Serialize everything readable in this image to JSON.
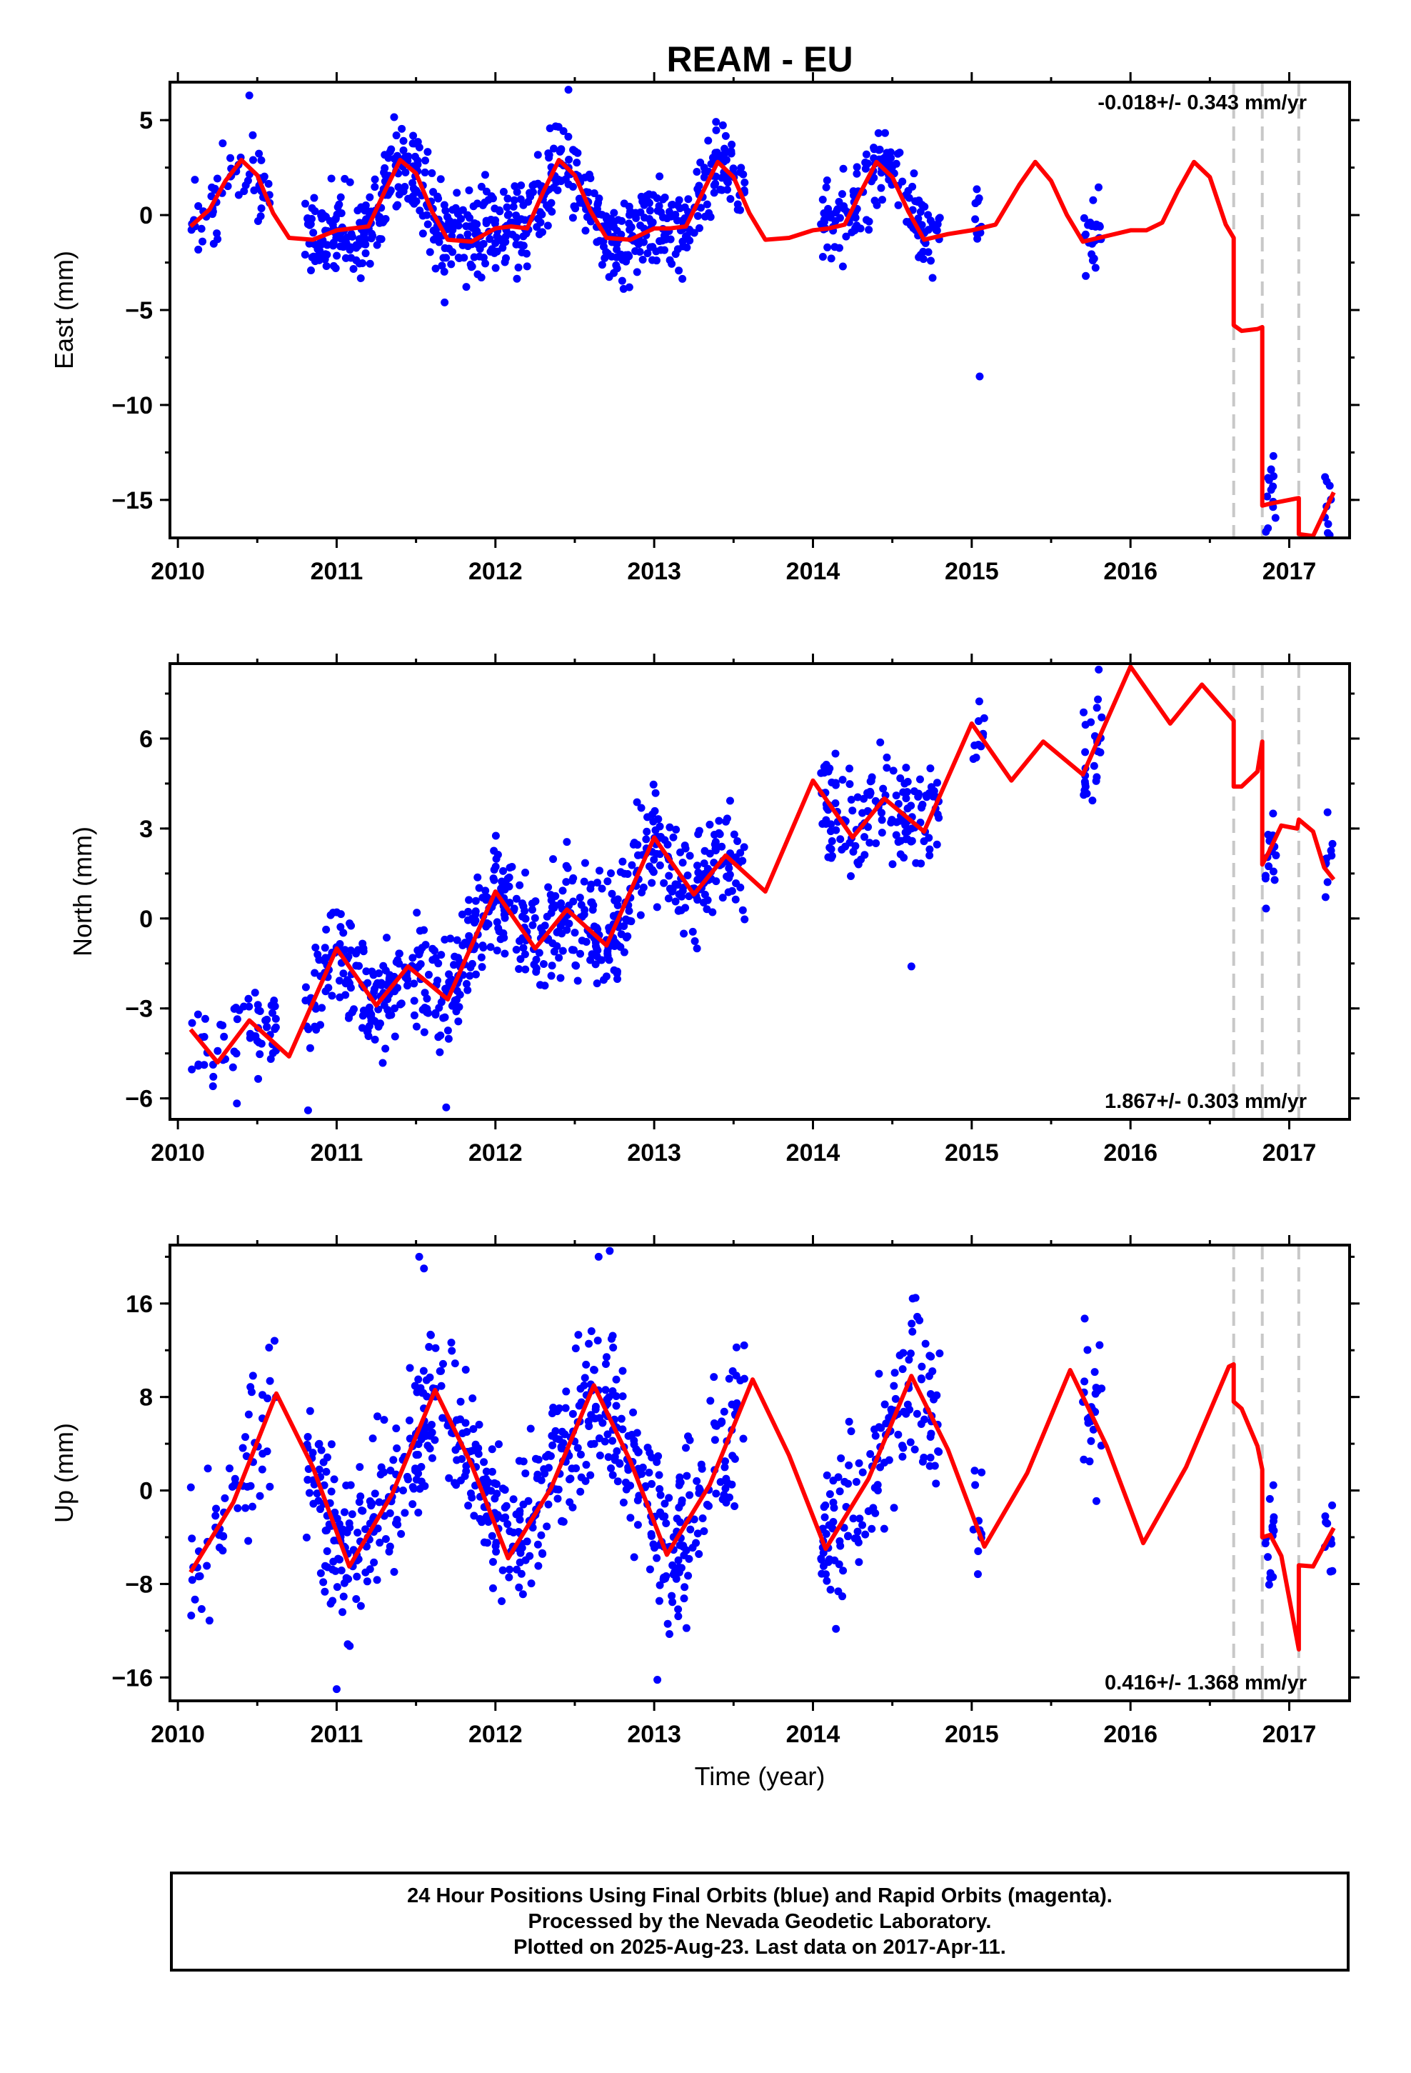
{
  "title": "REAM - EU",
  "colors": {
    "data": "#0000ff",
    "model": "#ff0000",
    "event_lines": "#c8c8c8",
    "frame": "#000000"
  },
  "chart_data": [
    {
      "type": "scatter",
      "component": "east",
      "ylabel": "East (mm)",
      "xlabel": "",
      "xlim": [
        2009.95,
        2017.38
      ],
      "ylim": [
        -17,
        7
      ],
      "xticks": [
        2010,
        2011,
        2012,
        2013,
        2014,
        2015,
        2016,
        2017
      ],
      "yticks": [
        5,
        0,
        -5,
        -10,
        -15
      ],
      "ytick_labels": [
        "5",
        "0",
        "−5",
        "−10",
        "−15"
      ],
      "rate_text": "-0.018+/- 0.343 mm/yr",
      "rate_position": "top-right",
      "event_lines_x": [
        2016.65,
        2016.83,
        2017.06
      ],
      "model": {
        "x": [
          2010.08,
          2010.2,
          2010.3,
          2010.4,
          2010.5,
          2010.6,
          2010.7,
          2010.85,
          2011.0,
          2011.1,
          2011.2,
          2011.3,
          2011.4,
          2011.5,
          2011.6,
          2011.7,
          2011.85,
          2012.0,
          2012.1,
          2012.2,
          2012.3,
          2012.4,
          2012.5,
          2012.6,
          2012.7,
          2012.85,
          2013.0,
          2013.1,
          2013.2,
          2013.3,
          2013.4,
          2013.5,
          2013.6,
          2013.7,
          2013.85,
          2014.0,
          2014.1,
          2014.2,
          2014.3,
          2014.4,
          2014.5,
          2014.6,
          2014.7,
          2014.85,
          2015.0,
          2015.15,
          2015.3,
          2015.4,
          2015.5,
          2015.6,
          2015.7,
          2015.8,
          2016.0,
          2016.1,
          2016.2,
          2016.3,
          2016.4,
          2016.5,
          2016.6,
          2016.65,
          2016.65,
          2016.7,
          2016.8,
          2016.83,
          2016.83,
          2016.88,
          2017.06,
          2017.06,
          2017.15,
          2017.28
        ],
        "y": [
          -0.6,
          0.3,
          1.8,
          2.9,
          2.1,
          0.1,
          -1.2,
          -1.3,
          -0.8,
          -0.7,
          -0.6,
          1.2,
          2.9,
          2.2,
          0.2,
          -1.3,
          -1.4,
          -0.7,
          -0.6,
          -0.7,
          1.2,
          2.9,
          2.1,
          0.2,
          -1.2,
          -1.3,
          -0.7,
          -0.7,
          -0.6,
          1.1,
          2.8,
          2.0,
          0.1,
          -1.3,
          -1.2,
          -0.8,
          -0.7,
          -0.5,
          1.2,
          2.8,
          2.0,
          0.2,
          -1.3,
          -1.0,
          -0.8,
          -0.5,
          1.6,
          2.8,
          1.8,
          0.0,
          -1.4,
          -1.2,
          -0.8,
          -0.8,
          -0.4,
          1.3,
          2.8,
          2.0,
          -0.5,
          -1.2,
          -5.8,
          -6.1,
          -6.0,
          -5.9,
          -15.3,
          -15.2,
          -14.9,
          -16.8,
          -16.9,
          -14.6
        ]
      },
      "points": {
        "segments": [
          [
            2010.08,
            2010.58
          ],
          [
            2010.8,
            2011.35
          ],
          [
            2011.35,
            2011.92
          ],
          [
            2011.92,
            2012.62
          ],
          [
            2012.62,
            2013.15
          ],
          [
            2013.15,
            2013.57
          ],
          [
            2014.05,
            2014.8
          ],
          [
            2015.01,
            2015.08
          ],
          [
            2015.7,
            2015.82
          ],
          [
            2016.85,
            2016.92
          ],
          [
            2017.22,
            2017.28
          ]
        ],
        "count_per_segment": [
          60,
          150,
          150,
          170,
          130,
          90,
          150,
          10,
          25,
          15,
          10
        ],
        "amplitude": 1.6,
        "outliers": [
          [
            2015.05,
            -8.5
          ],
          [
            2012.46,
            6.6
          ],
          [
            2010.45,
            6.3
          ],
          [
            2011.68,
            -4.6
          ]
        ]
      }
    },
    {
      "type": "scatter",
      "component": "north",
      "ylabel": "North (mm)",
      "xlabel": "",
      "xlim": [
        2009.95,
        2017.38
      ],
      "ylim": [
        -6.7,
        8.5
      ],
      "xticks": [
        2010,
        2011,
        2012,
        2013,
        2014,
        2015,
        2016,
        2017
      ],
      "yticks": [
        6,
        3,
        0,
        -3,
        -6
      ],
      "ytick_labels": [
        "6",
        "3",
        "0",
        "−3",
        "−6"
      ],
      "rate_text": "1.867+/- 0.303 mm/yr",
      "rate_position": "bottom-right",
      "event_lines_x": [
        2016.65,
        2016.83,
        2017.06
      ],
      "model": {
        "x": [
          2010.08,
          2010.25,
          2010.45,
          2010.7,
          2011.0,
          2011.25,
          2011.45,
          2011.7,
          2012.0,
          2012.25,
          2012.45,
          2012.7,
          2013.0,
          2013.25,
          2013.45,
          2013.7,
          2014.0,
          2014.25,
          2014.45,
          2014.7,
          2015.0,
          2015.25,
          2015.45,
          2015.7,
          2016.0,
          2016.25,
          2016.45,
          2016.65,
          2016.65,
          2016.7,
          2016.8,
          2016.83,
          2016.83,
          2016.87,
          2016.95,
          2017.05,
          2017.06,
          2017.15,
          2017.22,
          2017.28
        ],
        "y": [
          -3.7,
          -4.8,
          -3.4,
          -4.6,
          -1.0,
          -2.9,
          -1.6,
          -2.7,
          0.9,
          -1.0,
          0.3,
          -0.9,
          2.7,
          0.8,
          2.1,
          0.9,
          4.6,
          2.7,
          4.0,
          2.9,
          6.5,
          4.6,
          5.9,
          4.8,
          8.4,
          6.5,
          7.8,
          6.6,
          4.4,
          4.4,
          4.9,
          5.9,
          1.8,
          2.2,
          3.1,
          3.0,
          3.3,
          2.9,
          1.7,
          1.3
        ]
      },
      "points": {
        "segments": [
          [
            2010.08,
            2010.62
          ],
          [
            2010.8,
            2011.45
          ],
          [
            2011.45,
            2011.92
          ],
          [
            2011.92,
            2012.62
          ],
          [
            2012.62,
            2013.15
          ],
          [
            2013.15,
            2013.57
          ],
          [
            2014.05,
            2014.8
          ],
          [
            2015.01,
            2015.08
          ],
          [
            2015.7,
            2015.82
          ],
          [
            2016.85,
            2016.92
          ],
          [
            2017.22,
            2017.28
          ]
        ],
        "count_per_segment": [
          60,
          150,
          110,
          170,
          130,
          90,
          150,
          10,
          25,
          15,
          10
        ],
        "amplitude": 1.3,
        "outliers": [
          [
            2014.62,
            -1.6
          ],
          [
            2011.69,
            -6.3
          ],
          [
            2010.82,
            -6.4
          ],
          [
            2015.8,
            8.3
          ]
        ]
      }
    },
    {
      "type": "scatter",
      "component": "up",
      "ylabel": "Up (mm)",
      "xlabel": "Time (year)",
      "xlim": [
        2009.95,
        2017.38
      ],
      "ylim": [
        -18,
        21
      ],
      "xticks": [
        2010,
        2011,
        2012,
        2013,
        2014,
        2015,
        2016,
        2017
      ],
      "yticks": [
        16,
        8,
        0,
        -8,
        -16
      ],
      "ytick_labels": [
        "16",
        "8",
        "0",
        "−8",
        "−16"
      ],
      "rate_text": "0.416+/- 1.368 mm/yr",
      "rate_position": "bottom-right",
      "event_lines_x": [
        2016.65,
        2016.83,
        2017.06
      ],
      "model": {
        "x": [
          2010.08,
          2010.35,
          2010.62,
          2010.85,
          2011.08,
          2011.35,
          2011.62,
          2011.85,
          2012.08,
          2012.35,
          2012.62,
          2012.85,
          2013.08,
          2013.35,
          2013.62,
          2013.85,
          2014.08,
          2014.35,
          2014.62,
          2014.85,
          2015.08,
          2015.35,
          2015.62,
          2015.85,
          2016.08,
          2016.35,
          2016.62,
          2016.65,
          2016.65,
          2016.7,
          2016.8,
          2016.83,
          2016.83,
          2016.88,
          2016.95,
          2017.06,
          2017.06,
          2017.15,
          2017.28
        ],
        "y": [
          -7.0,
          -1.0,
          8.3,
          2.0,
          -6.5,
          -0.3,
          8.6,
          2.2,
          -5.8,
          0.2,
          9.0,
          2.5,
          -5.5,
          0.5,
          9.5,
          3.0,
          -5.0,
          1.0,
          9.8,
          3.5,
          -4.8,
          1.5,
          10.3,
          3.8,
          -4.5,
          2.0,
          10.6,
          10.8,
          7.6,
          7.0,
          3.8,
          1.8,
          -4.0,
          -3.8,
          -5.6,
          -13.6,
          -6.4,
          -6.5,
          -3.2
        ]
      },
      "points": {
        "segments": [
          [
            2010.08,
            2010.62
          ],
          [
            2010.8,
            2011.45
          ],
          [
            2011.45,
            2011.92
          ],
          [
            2011.92,
            2012.62
          ],
          [
            2012.62,
            2013.15
          ],
          [
            2013.15,
            2013.57
          ],
          [
            2014.05,
            2014.8
          ],
          [
            2015.01,
            2015.08
          ],
          [
            2015.7,
            2015.82
          ],
          [
            2016.85,
            2016.92
          ],
          [
            2017.22,
            2017.28
          ]
        ],
        "count_per_segment": [
          60,
          150,
          110,
          170,
          130,
          90,
          150,
          10,
          25,
          15,
          10
        ],
        "amplitude": 4.8,
        "outliers": [
          [
            2011.52,
            20.0
          ],
          [
            2012.72,
            20.5
          ],
          [
            2012.65,
            20.0
          ],
          [
            2011.55,
            19.0
          ],
          [
            2011.0,
            -17.0
          ],
          [
            2013.02,
            -16.2
          ]
        ]
      }
    }
  ],
  "footer": {
    "line1": "24 Hour Positions Using Final Orbits (blue) and Rapid Orbits (magenta).",
    "line2": "Processed by the Nevada Geodetic Laboratory.",
    "line3": "Plotted on 2025-Aug-23. Last data on 2017-Apr-11."
  }
}
